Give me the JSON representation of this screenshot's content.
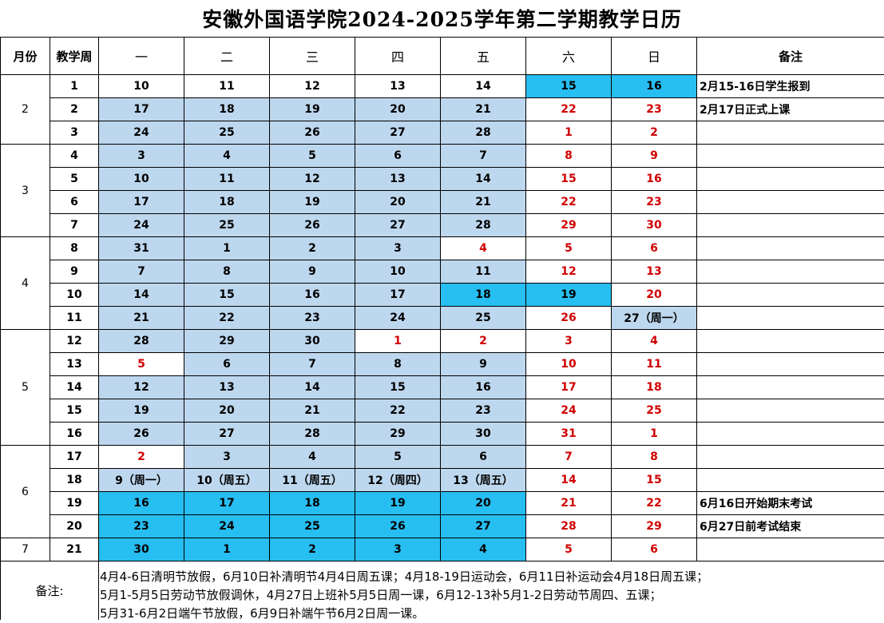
{
  "title": "安徽外国语学院2024-2025学年第二学期教学日历",
  "headers": [
    "月份",
    "教学周",
    "一",
    "二",
    "三",
    "四",
    "五",
    "六",
    "日",
    "备注"
  ],
  "months": [
    {
      "label": "2",
      "rows": 3
    },
    {
      "label": "3",
      "rows": 4
    },
    {
      "label": "4",
      "rows": 4
    },
    {
      "label": "5",
      "rows": 5
    },
    {
      "label": "6",
      "rows": 4
    },
    {
      "label": "7",
      "rows": 1
    }
  ],
  "cell_style_legend": {
    "L": "#bdd7ee",
    "B": "#27bef2",
    "W": "#ffffff",
    "R": "#d00000"
  },
  "weeks": [
    {
      "week": "1",
      "days": [
        "10",
        "11",
        "12",
        "13",
        "14",
        "15",
        "16"
      ],
      "styles": [
        "W",
        "W",
        "W",
        "W",
        "W",
        "B",
        "B"
      ],
      "note": "2月15-16日学生报到"
    },
    {
      "week": "2",
      "days": [
        "17",
        "18",
        "19",
        "20",
        "21",
        "22",
        "23"
      ],
      "styles": [
        "L",
        "L",
        "L",
        "L",
        "L",
        "R",
        "R"
      ],
      "note": "2月17日正式上课"
    },
    {
      "week": "3",
      "days": [
        "24",
        "25",
        "26",
        "27",
        "28",
        "1",
        "2"
      ],
      "styles": [
        "L",
        "L",
        "L",
        "L",
        "L",
        "R",
        "R"
      ],
      "note": ""
    },
    {
      "week": "4",
      "days": [
        "3",
        "4",
        "5",
        "6",
        "7",
        "8",
        "9"
      ],
      "styles": [
        "L",
        "L",
        "L",
        "L",
        "L",
        "R",
        "R"
      ],
      "note": ""
    },
    {
      "week": "5",
      "days": [
        "10",
        "11",
        "12",
        "13",
        "14",
        "15",
        "16"
      ],
      "styles": [
        "L",
        "L",
        "L",
        "L",
        "L",
        "R",
        "R"
      ],
      "note": ""
    },
    {
      "week": "6",
      "days": [
        "17",
        "18",
        "19",
        "20",
        "21",
        "22",
        "23"
      ],
      "styles": [
        "L",
        "L",
        "L",
        "L",
        "L",
        "R",
        "R"
      ],
      "note": ""
    },
    {
      "week": "7",
      "days": [
        "24",
        "25",
        "26",
        "27",
        "28",
        "29",
        "30"
      ],
      "styles": [
        "L",
        "L",
        "L",
        "L",
        "L",
        "R",
        "R"
      ],
      "note": ""
    },
    {
      "week": "8",
      "days": [
        "31",
        "1",
        "2",
        "3",
        "4",
        "5",
        "6"
      ],
      "styles": [
        "L",
        "L",
        "L",
        "L",
        "R",
        "R",
        "R"
      ],
      "note": ""
    },
    {
      "week": "9",
      "days": [
        "7",
        "8",
        "9",
        "10",
        "11",
        "12",
        "13"
      ],
      "styles": [
        "L",
        "L",
        "L",
        "L",
        "L",
        "R",
        "R"
      ],
      "note": ""
    },
    {
      "week": "10",
      "days": [
        "14",
        "15",
        "16",
        "17",
        "18",
        "19",
        "20"
      ],
      "styles": [
        "L",
        "L",
        "L",
        "L",
        "B",
        "B",
        "R"
      ],
      "note": ""
    },
    {
      "week": "11",
      "days": [
        "21",
        "22",
        "23",
        "24",
        "25",
        "26",
        "27（周一）"
      ],
      "styles": [
        "L",
        "L",
        "L",
        "L",
        "L",
        "R",
        "L"
      ],
      "note": ""
    },
    {
      "week": "12",
      "days": [
        "28",
        "29",
        "30",
        "1",
        "2",
        "3",
        "4"
      ],
      "styles": [
        "L",
        "L",
        "L",
        "R",
        "R",
        "R",
        "R"
      ],
      "note": ""
    },
    {
      "week": "13",
      "days": [
        "5",
        "6",
        "7",
        "8",
        "9",
        "10",
        "11"
      ],
      "styles": [
        "R",
        "L",
        "L",
        "L",
        "L",
        "R",
        "R"
      ],
      "note": ""
    },
    {
      "week": "14",
      "days": [
        "12",
        "13",
        "14",
        "15",
        "16",
        "17",
        "18"
      ],
      "styles": [
        "L",
        "L",
        "L",
        "L",
        "L",
        "R",
        "R"
      ],
      "note": ""
    },
    {
      "week": "15",
      "days": [
        "19",
        "20",
        "21",
        "22",
        "23",
        "24",
        "25"
      ],
      "styles": [
        "L",
        "L",
        "L",
        "L",
        "L",
        "R",
        "R"
      ],
      "note": ""
    },
    {
      "week": "16",
      "days": [
        "26",
        "27",
        "28",
        "29",
        "30",
        "31",
        "1"
      ],
      "styles": [
        "L",
        "L",
        "L",
        "L",
        "L",
        "R",
        "R"
      ],
      "note": ""
    },
    {
      "week": "17",
      "days": [
        "2",
        "3",
        "4",
        "5",
        "6",
        "7",
        "8"
      ],
      "styles": [
        "R",
        "L",
        "L",
        "L",
        "L",
        "R",
        "R"
      ],
      "note": ""
    },
    {
      "week": "18",
      "days": [
        "9（周一）",
        "10（周五）",
        "11（周五）",
        "12（周四）",
        "13（周五）",
        "14",
        "15"
      ],
      "styles": [
        "L",
        "L",
        "L",
        "L",
        "L",
        "R",
        "R"
      ],
      "note": ""
    },
    {
      "week": "19",
      "days": [
        "16",
        "17",
        "18",
        "19",
        "20",
        "21",
        "22"
      ],
      "styles": [
        "B",
        "B",
        "B",
        "B",
        "B",
        "R",
        "R"
      ],
      "note": "6月16日开始期末考试"
    },
    {
      "week": "20",
      "days": [
        "23",
        "24",
        "25",
        "26",
        "27",
        "28",
        "29"
      ],
      "styles": [
        "B",
        "B",
        "B",
        "B",
        "B",
        "R",
        "R"
      ],
      "note": "6月27日前考试结束"
    },
    {
      "week": "21",
      "days": [
        "30",
        "1",
        "2",
        "3",
        "4",
        "5",
        "6"
      ],
      "styles": [
        "B",
        "B",
        "B",
        "B",
        "B",
        "R",
        "R"
      ],
      "note": ""
    }
  ],
  "remarks": {
    "label": "备注:",
    "lines": [
      "4月4-6日清明节放假，6月10日补清明节4月4日周五课；4月18-19日运动会，6月11日补运动会4月18日周五课；",
      "5月1-5月5日劳动节放假调休，4月27日上班补5月5日周一课，6月12-13补5月1-2日劳动节周四、五课；",
      "5月31-6月2日端午节放假，6月9日补端午节6月2日周一课。"
    ]
  }
}
